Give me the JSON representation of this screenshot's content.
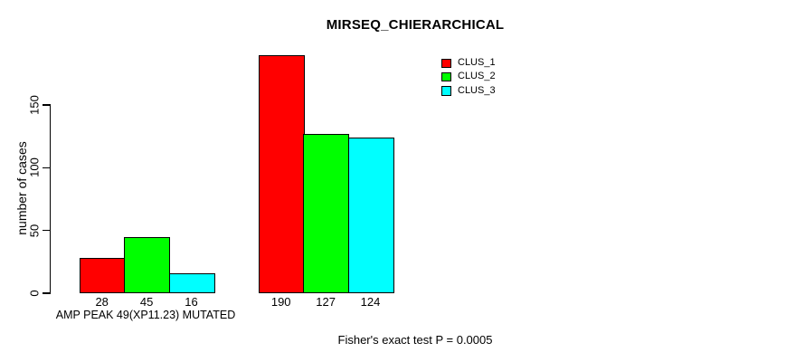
{
  "chart_data": {
    "type": "bar",
    "title": "MIRSEQ_CHIERARCHICAL",
    "ylabel": "number of cases",
    "xlabel": "",
    "yticks": [
      0,
      50,
      100,
      150
    ],
    "ylim": [
      0,
      192
    ],
    "grid": false,
    "legend_position": "top-right",
    "bar_value_labels_shown": true,
    "series": [
      {
        "name": "CLUS_1",
        "color": "#ff0000",
        "values": [
          28,
          190
        ]
      },
      {
        "name": "CLUS_2",
        "color": "#00ff00",
        "values": [
          45,
          127
        ]
      },
      {
        "name": "CLUS_3",
        "color": "#00ffff",
        "values": [
          16,
          124
        ]
      }
    ],
    "groups": [
      {
        "label": "AMP PEAK 49(XP11.23) MUTATED",
        "values": [
          28,
          45,
          16
        ]
      },
      {
        "label": "",
        "values": [
          190,
          127,
          124
        ]
      }
    ],
    "annotation": "Fisher's exact test P = 0.0005"
  },
  "styles": {
    "background": "#ffffff",
    "axis_color": "#000000",
    "bar_border_color": "#000000",
    "text_color": "#000000"
  }
}
